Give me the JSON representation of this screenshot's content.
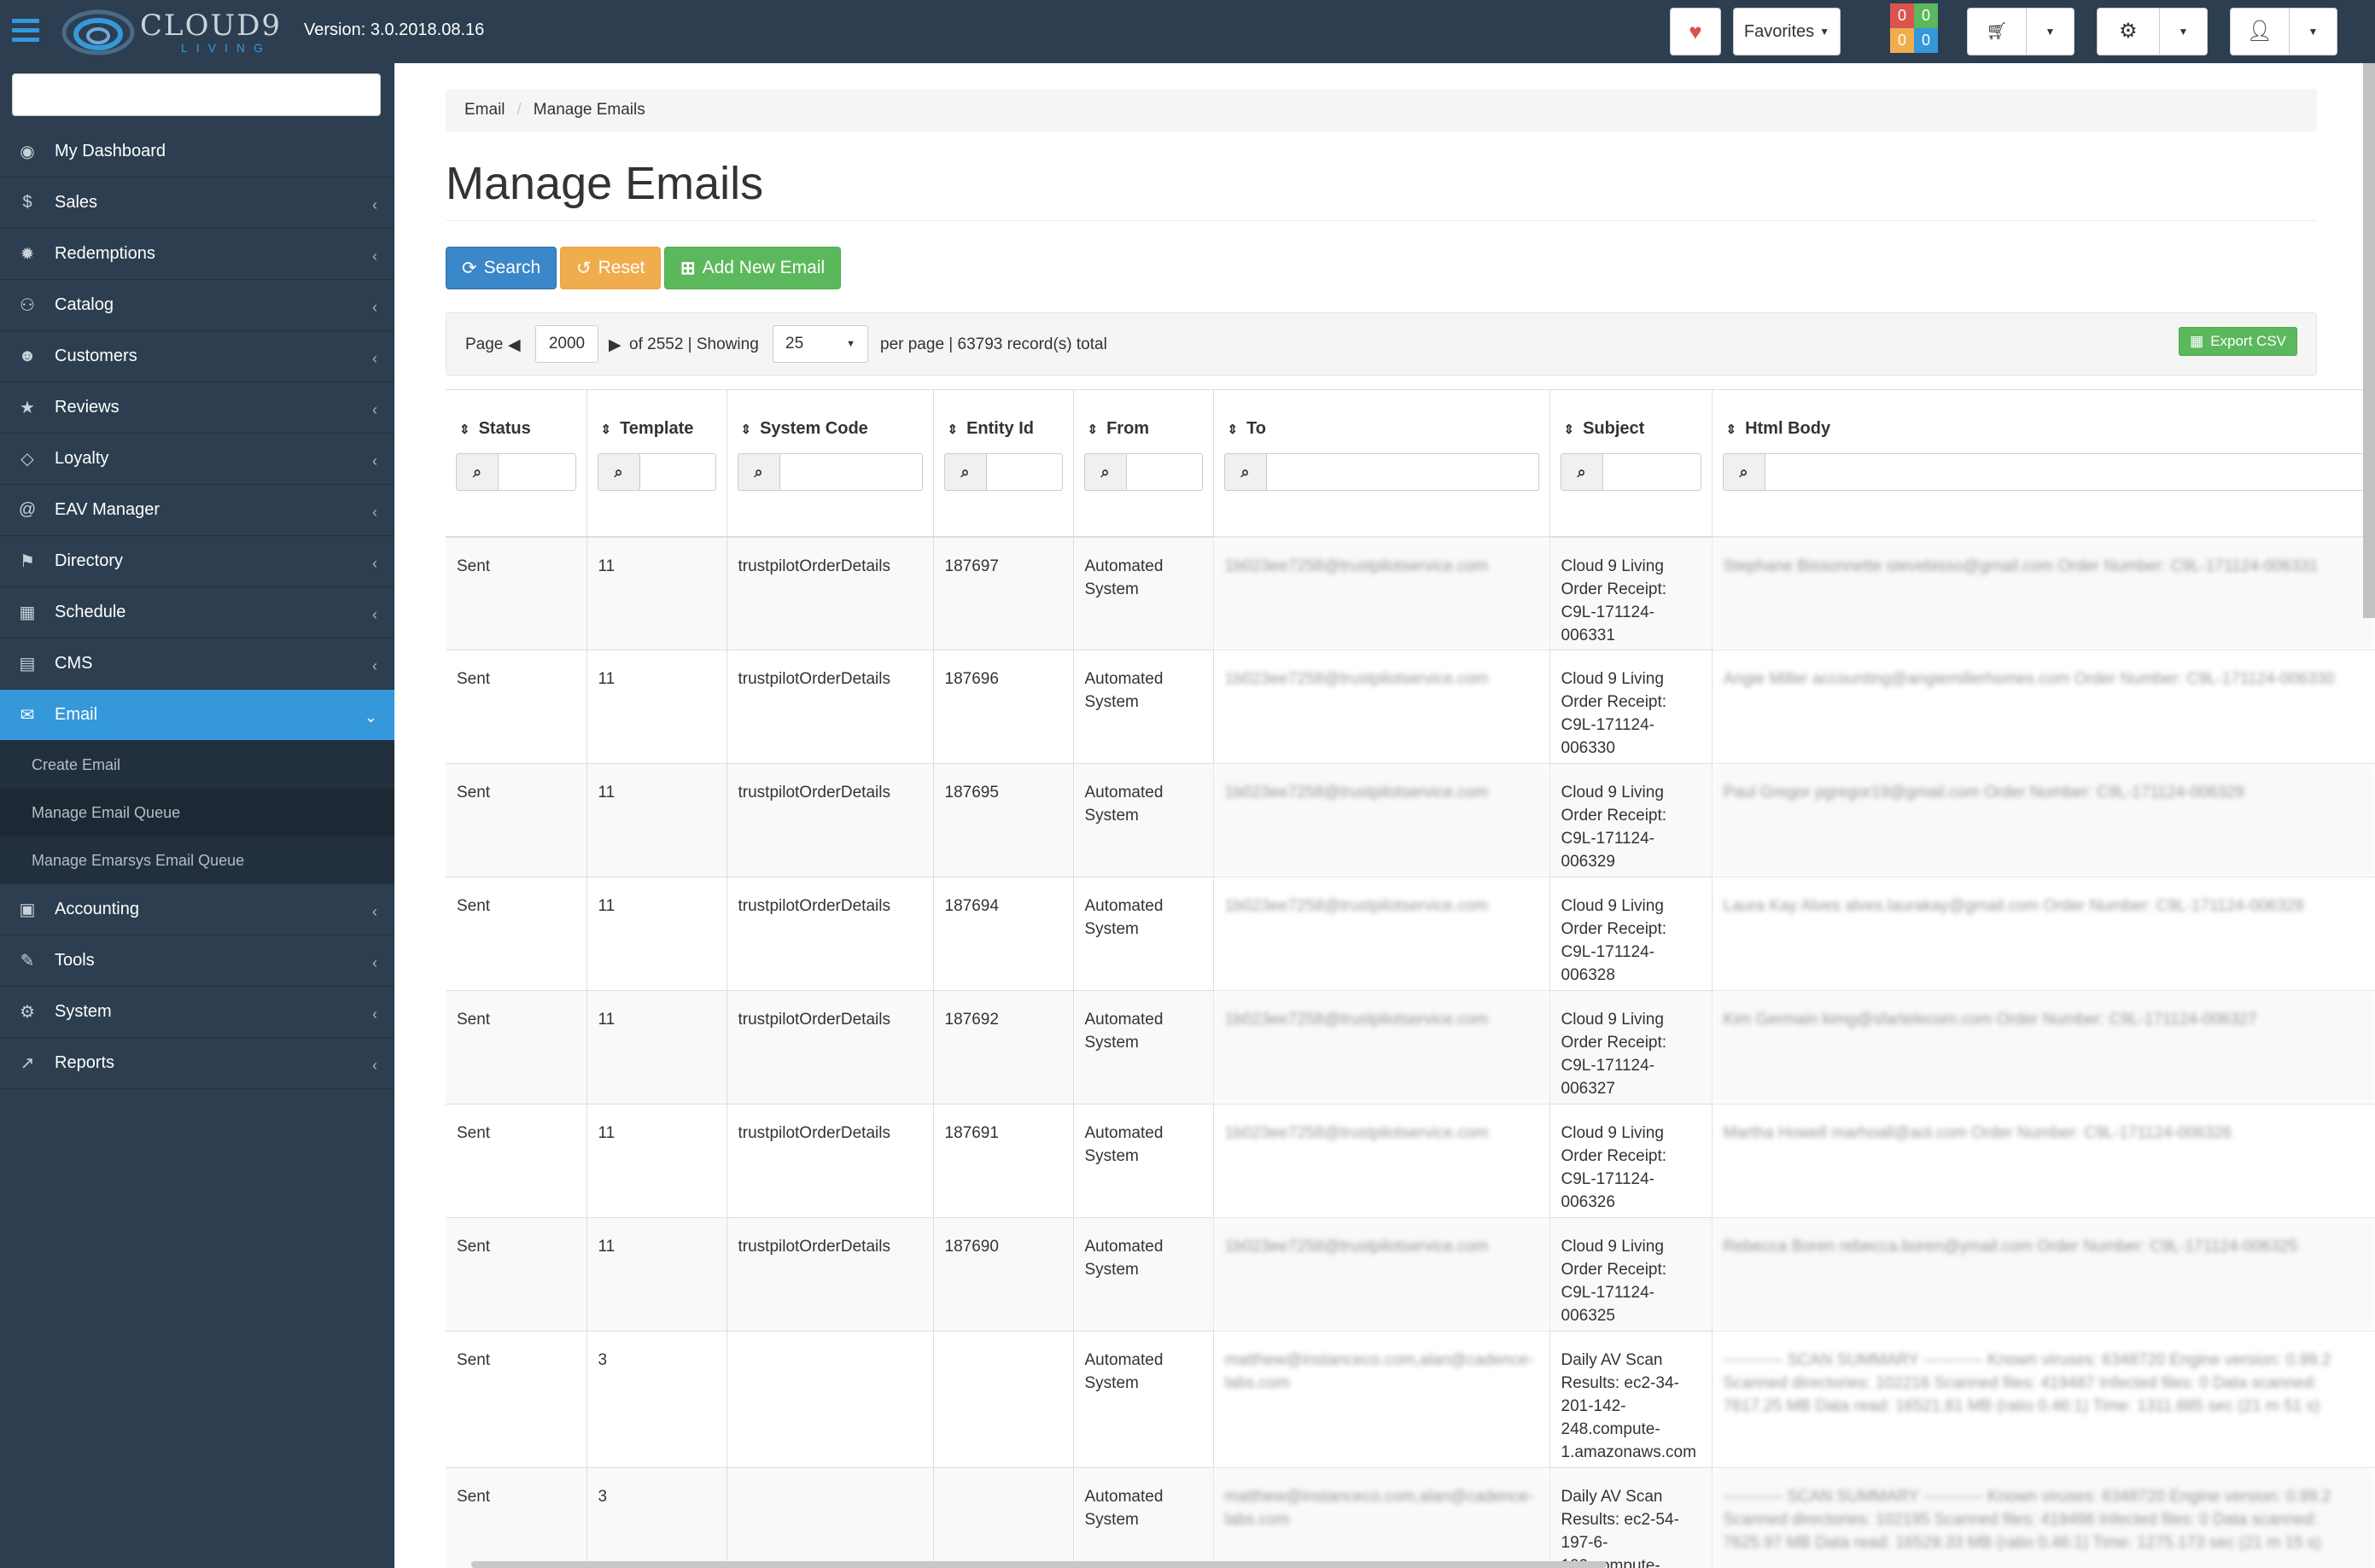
{
  "header": {
    "logo_word": "CLOUD9",
    "logo_sub": "LIVING",
    "version": "Version: 3.0.2018.08.16",
    "favorites_label": "Favorites",
    "badges": [
      "0",
      "0",
      "0",
      "0"
    ]
  },
  "sidebar": {
    "search_placeholder": "",
    "items": [
      {
        "label": "My Dashboard",
        "icon": "dashboard-icon",
        "glyph": "◉",
        "chevron": ""
      },
      {
        "label": "Sales",
        "icon": "dollar-icon",
        "glyph": "$",
        "chevron": "‹"
      },
      {
        "label": "Redemptions",
        "icon": "gear-icon",
        "glyph": "✹",
        "chevron": "‹"
      },
      {
        "label": "Catalog",
        "icon": "sitemap-icon",
        "glyph": "⚇",
        "chevron": "‹"
      },
      {
        "label": "Customers",
        "icon": "users-icon",
        "glyph": "☻",
        "chevron": "‹"
      },
      {
        "label": "Reviews",
        "icon": "star-icon",
        "glyph": "★",
        "chevron": "‹"
      },
      {
        "label": "Loyalty",
        "icon": "diamond-icon",
        "glyph": "◇",
        "chevron": "‹"
      },
      {
        "label": "EAV Manager",
        "icon": "at-icon",
        "glyph": "@",
        "chevron": "‹"
      },
      {
        "label": "Directory",
        "icon": "flag-icon",
        "glyph": "⚑",
        "chevron": "‹"
      },
      {
        "label": "Schedule",
        "icon": "calendar-icon",
        "glyph": "▦",
        "chevron": "‹"
      },
      {
        "label": "CMS",
        "icon": "file-icon",
        "glyph": "▤",
        "chevron": "‹"
      },
      {
        "label": "Email",
        "icon": "envelope-icon",
        "glyph": "✉",
        "chevron": "⌄"
      }
    ],
    "email_sub": [
      "Create Email",
      "Manage Email Queue",
      "Manage Emarsys Email Queue"
    ],
    "items_after": [
      {
        "label": "Accounting",
        "icon": "money-icon",
        "glyph": "▣",
        "chevron": "‹"
      },
      {
        "label": "Tools",
        "icon": "wrench-icon",
        "glyph": "✎",
        "chevron": "‹"
      },
      {
        "label": "System",
        "icon": "cogs-icon",
        "glyph": "⚙",
        "chevron": "‹"
      },
      {
        "label": "Reports",
        "icon": "chart-icon",
        "glyph": "↗",
        "chevron": "‹"
      }
    ]
  },
  "breadcrumb": {
    "parent": "Email",
    "current": "Manage Emails"
  },
  "page_title": "Manage Emails",
  "actions": {
    "search": "Search",
    "reset": "Reset",
    "add": "Add New Email"
  },
  "pager": {
    "page_label": "Page",
    "page_value": "2000",
    "of_label": "of 2552 | Showing",
    "per_page_value": "25",
    "total_label": "per page | 63793 record(s) total",
    "export_label": "Export CSV"
  },
  "table": {
    "columns": [
      "Status",
      "Template",
      "System Code",
      "Entity Id",
      "From",
      "To",
      "Subject",
      "Html Body"
    ],
    "rows": [
      {
        "status": "Sent",
        "template": "11",
        "code": "trustpilotOrderDetails",
        "entity": "187697",
        "from": "Automated System",
        "to": "1b023ee7258@trustpilotservice.com",
        "subject": "Cloud 9 Living Order Receipt: C9L-171124-006331",
        "body": "Stephane Bissonnette stevebisso@gmail.com Order Number: C9L-171124-006331"
      },
      {
        "status": "Sent",
        "template": "11",
        "code": "trustpilotOrderDetails",
        "entity": "187696",
        "from": "Automated System",
        "to": "1b023ee7258@trustpilotservice.com",
        "subject": "Cloud 9 Living Order Receipt: C9L-171124-006330",
        "body": "Angie Miller accounting@angiemillerhomes.com Order Number: C9L-171124-006330"
      },
      {
        "status": "Sent",
        "template": "11",
        "code": "trustpilotOrderDetails",
        "entity": "187695",
        "from": "Automated System",
        "to": "1b023ee7258@trustpilotservice.com",
        "subject": "Cloud 9 Living Order Receipt: C9L-171124-006329",
        "body": "Paul Gregor pgregor19@gmail.com Order Number: C9L-171124-006329"
      },
      {
        "status": "Sent",
        "template": "11",
        "code": "trustpilotOrderDetails",
        "entity": "187694",
        "from": "Automated System",
        "to": "1b023ee7258@trustpilotservice.com",
        "subject": "Cloud 9 Living Order Receipt: C9L-171124-006328",
        "body": "Laura Kay Alves alves.laurakay@gmail.com Order Number: C9L-171124-006328"
      },
      {
        "status": "Sent",
        "template": "11",
        "code": "trustpilotOrderDetails",
        "entity": "187692",
        "from": "Automated System",
        "to": "1b023ee7258@trustpilotservice.com",
        "subject": "Cloud 9 Living Order Receipt: C9L-171124-006327",
        "body": "Kim Germain kimg@sfartelecom.com Order Number: C9L-171124-006327"
      },
      {
        "status": "Sent",
        "template": "11",
        "code": "trustpilotOrderDetails",
        "entity": "187691",
        "from": "Automated System",
        "to": "1b023ee7258@trustpilotservice.com",
        "subject": "Cloud 9 Living Order Receipt: C9L-171124-006326",
        "body": "Martha Howell marhoall@aol.com Order Number: C9L-171124-006326"
      },
      {
        "status": "Sent",
        "template": "11",
        "code": "trustpilotOrderDetails",
        "entity": "187690",
        "from": "Automated System",
        "to": "1b023ee7258@trustpilotservice.com",
        "subject": "Cloud 9 Living Order Receipt: C9L-171124-006325",
        "body": "Rebecca Boren rebecca.boren@ymail.com Order Number: C9L-171124-006325"
      },
      {
        "status": "Sent",
        "template": "3",
        "code": "",
        "entity": "",
        "from": "Automated System",
        "to": "matthew@instanceco.com,alan@cadence-labs.com",
        "subject": "Daily AV Scan Results: ec2-34-201-142-248.compute-1.amazonaws.com",
        "body": "----------- SCAN SUMMARY ----------- Known viruses: 6348720 Engine version: 0.99.2 Scanned directories: 102216 Scanned files: 419487 Infected files: 0 Data scanned: 7617.25 MB Data read: 16521.81 MB (ratio 0.46:1) Time: 1311.885 sec (21 m 51 s)"
      },
      {
        "status": "Sent",
        "template": "3",
        "code": "",
        "entity": "",
        "from": "Automated System",
        "to": "matthew@instanceco.com,alan@cadence-labs.com",
        "subject": "Daily AV Scan Results: ec2-54-197-6-199.compute-",
        "body": "----------- SCAN SUMMARY ----------- Known viruses: 6348720 Engine version: 0.99.2 Scanned directories: 102195 Scanned files: 419486 Infected files: 0 Data scanned: 7625.97 MB Data read: 16529.33 MB (ratio 0.46:1) Time: 1275.173 sec (21 m 15 s)"
      }
    ]
  }
}
